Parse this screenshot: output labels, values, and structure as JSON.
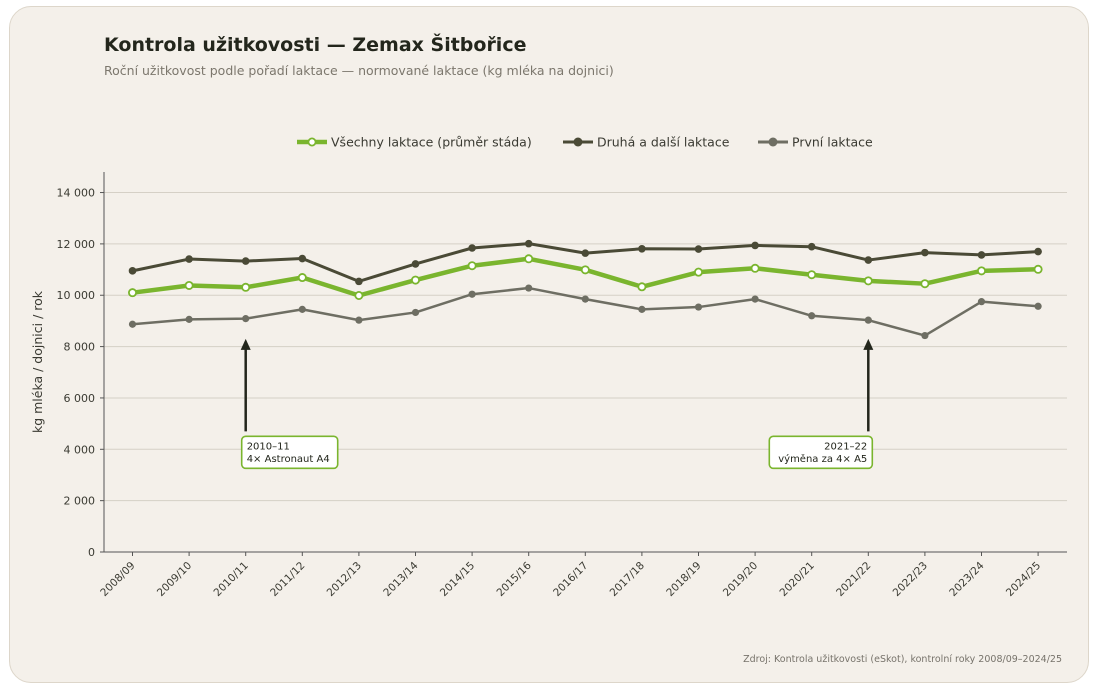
{
  "header": {
    "title": "Kontrola užitkovosti — Zemax Šitbořice",
    "subtitle": "Roční užitkovost podle pořadí laktace — normované laktace (kg mléka na dojnici)"
  },
  "footer": {
    "source": "Zdroj: Kontrola užitkovosti (eSkot), kontrolní roky 2008/09–2024/25"
  },
  "colors": {
    "background": "#f4f0ea",
    "all_lactations": "#7ab52e",
    "second_plus": "#4a4a36",
    "first": "#6e6e63",
    "grid": "#d5d0c6",
    "axis": "#555555"
  },
  "chart_data": {
    "type": "line",
    "title": "Kontrola užitkovosti — Zemax Šitbořice",
    "subtitle": "Roční užitkovost podle pořadí laktace — normované laktace (kg mléka na dojnici)",
    "xlabel": "",
    "ylabel": "kg mléka / dojnici / rok",
    "ylim": [
      0,
      14800
    ],
    "yticks": [
      0,
      2000,
      4000,
      6000,
      8000,
      10000,
      12000,
      14000
    ],
    "ytick_labels": [
      "0",
      "2 000",
      "4 000",
      "6 000",
      "8 000",
      "10 000",
      "12 000",
      "14 000"
    ],
    "grid": true,
    "legend_position": "top-center",
    "categories": [
      "2008/09",
      "2009/10",
      "2010/11",
      "2011/12",
      "2012/13",
      "2013/14",
      "2014/15",
      "2015/16",
      "2016/17",
      "2017/18",
      "2018/19",
      "2019/20",
      "2020/21",
      "2021/22",
      "2022/23",
      "2023/24",
      "2024/25"
    ],
    "series": [
      {
        "key": "all",
        "name": "Všechny laktace (průměr stáda)",
        "color": "#7ab52e",
        "values": [
          10100,
          10380,
          10310,
          10690,
          9990,
          10590,
          11150,
          11420,
          10990,
          10330,
          10900,
          11050,
          10800,
          10560,
          10450,
          10950,
          11010
        ]
      },
      {
        "key": "second",
        "name": "Druhá a další laktace",
        "color": "#4a4a36",
        "values": [
          10950,
          11410,
          11330,
          11430,
          10540,
          11220,
          11840,
          12010,
          11640,
          11810,
          11800,
          11940,
          11890,
          11370,
          11660,
          11570,
          11700
        ]
      },
      {
        "key": "first",
        "name": "První laktace",
        "color": "#6e6e63",
        "values": [
          8870,
          9060,
          9090,
          9450,
          9030,
          9330,
          10040,
          10280,
          9850,
          9450,
          9540,
          9850,
          9200,
          9030,
          8430,
          9750,
          9570
        ]
      }
    ],
    "annotations": [
      {
        "category": "2010/11",
        "arrow_to": 8300,
        "arrow_from": 4700,
        "lines": [
          "2010–11",
          "4× Astronaut A4"
        ],
        "align": "left"
      },
      {
        "category": "2021/22",
        "arrow_to": 8300,
        "arrow_from": 4700,
        "lines": [
          "2021–22",
          "výměna za 4× A5"
        ],
        "align": "right"
      }
    ]
  }
}
